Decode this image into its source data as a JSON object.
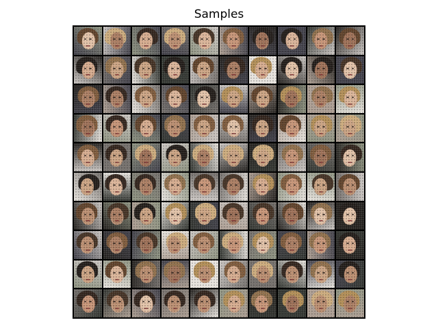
{
  "figure": {
    "title": "Samples"
  },
  "grid": {
    "rows": 10,
    "cols": 10,
    "palette": {
      "skin": [
        "#c9a07e",
        "#b8896a",
        "#d9b195",
        "#a7785c",
        "#e0bfa4",
        "#9a6a50",
        "#c49072",
        "#d4a88a"
      ],
      "hair": [
        "#2a1c14",
        "#5a3b22",
        "#b08a50",
        "#1a1410",
        "#7a5535",
        "#caa878",
        "#3d2a1c",
        "#8c6a45"
      ],
      "background": [
        "#1e1b18",
        "#6f6a66",
        "#c9c4c0",
        "#3b3a44",
        "#8a8f7c",
        "#e6e2dc",
        "#2c2f2a",
        "#a99a8e"
      ]
    }
  }
}
